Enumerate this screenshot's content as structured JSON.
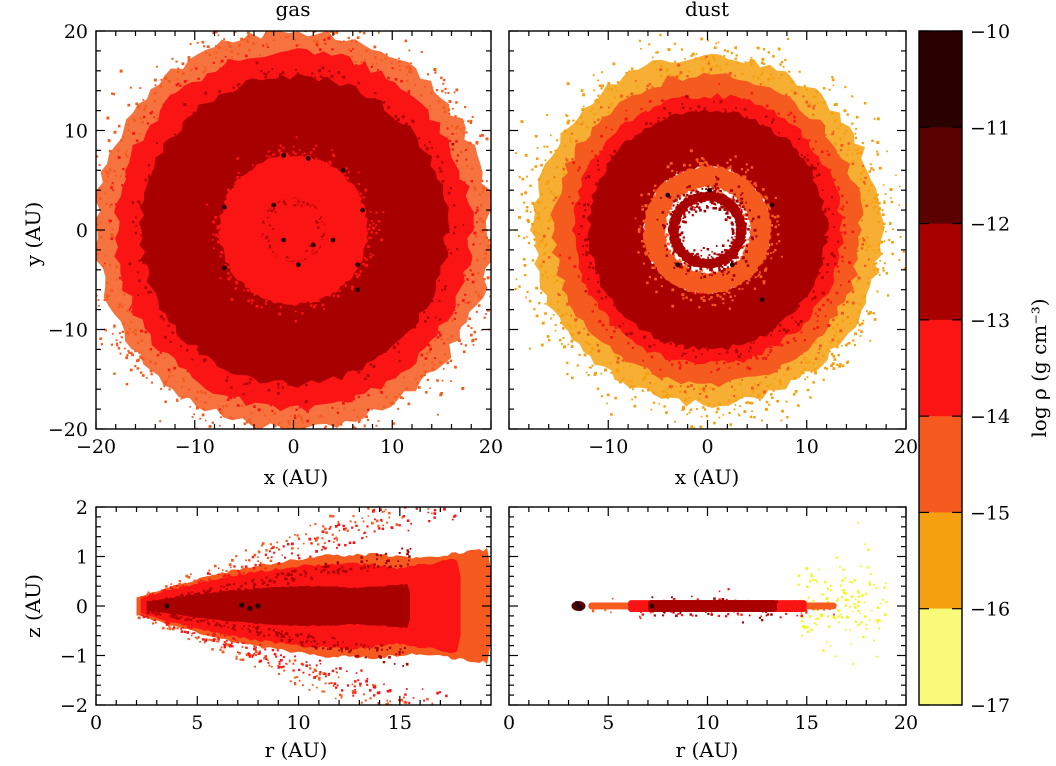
{
  "figure": {
    "colorbar_label": "log ρ (g cm⁻³)",
    "colorbar_ticks": [
      "−10",
      "−11",
      "−12",
      "−13",
      "−14",
      "−15",
      "−16",
      "−17"
    ]
  },
  "chart_data": [
    {
      "type": "scatter",
      "panel": "top-left",
      "title": "gas",
      "xlabel": "x (AU)",
      "ylabel": "y (AU)",
      "xlim": [
        -20,
        20
      ],
      "ylim": [
        -20,
        20
      ],
      "xticks": [
        -20,
        -10,
        0,
        10,
        20
      ],
      "yticks": [
        -20,
        -10,
        0,
        10,
        20
      ],
      "xtick_labels": [
        "−20",
        "−10",
        "0",
        "10",
        "20"
      ],
      "ytick_labels": [
        "−20",
        "−10",
        "0",
        "10",
        "20"
      ],
      "rings": [
        {
          "r_in": 0,
          "r_out": 20,
          "log_rho": -14,
          "sparse": true
        },
        {
          "r_in": 0,
          "r_out": 18,
          "log_rho": -13
        },
        {
          "r_in": 3.2,
          "r_out": 15.5,
          "log_rho": -12
        },
        {
          "r_in": 3.2,
          "r_out": 7.5,
          "log_rho": -13
        }
      ],
      "dense_points": [
        [
          -1,
          7.5
        ],
        [
          1.5,
          7.2
        ],
        [
          5,
          6
        ],
        [
          -7,
          2.3
        ],
        [
          7,
          2
        ],
        [
          -2,
          2.5
        ],
        [
          6.5,
          -3.5
        ],
        [
          6.5,
          -6
        ],
        [
          -7,
          -3.8
        ],
        [
          4,
          -1
        ],
        [
          2,
          -1.5
        ],
        [
          -1,
          -1
        ],
        [
          0.5,
          -3.5
        ]
      ]
    },
    {
      "type": "scatter",
      "panel": "top-right",
      "title": "dust",
      "xlabel": "x (AU)",
      "ylabel": "",
      "xlim": [
        -20,
        20
      ],
      "ylim": [
        -20,
        20
      ],
      "xticks": [
        -10,
        0,
        10,
        20
      ],
      "xtick_labels": [
        "−10",
        "0",
        "10",
        "20"
      ],
      "rings": [
        {
          "r_in": 13.5,
          "r_out": 17.5,
          "log_rho": -15,
          "sparse": true
        },
        {
          "r_in": 12,
          "r_out": 15.5,
          "log_rho": -14
        },
        {
          "r_in": 6.4,
          "r_out": 13.5,
          "log_rho": -13
        },
        {
          "r_in": 6.4,
          "r_out": 12,
          "log_rho": -12
        },
        {
          "r_in": 4.3,
          "r_out": 6.4,
          "log_rho": -14
        },
        {
          "r_in": 2.9,
          "r_out": 3.9,
          "log_rho": -12
        }
      ],
      "dense_points": [
        [
          -4,
          3.5
        ],
        [
          2.5,
          -3.5
        ],
        [
          0.2,
          4
        ],
        [
          -3,
          -3.5
        ],
        [
          6.5,
          2.5
        ],
        [
          5.5,
          -7
        ]
      ]
    },
    {
      "type": "scatter",
      "panel": "bottom-left",
      "title": "",
      "xlabel": "r (AU)",
      "ylabel": "z (AU)",
      "xlim": [
        0,
        19.5
      ],
      "ylim": [
        -2,
        2
      ],
      "xticks": [
        0,
        5,
        10,
        15
      ],
      "yticks": [
        -2,
        -1,
        0,
        1,
        2
      ],
      "xtick_labels": [
        "0",
        "5",
        "10",
        "15"
      ],
      "ytick_labels": [
        "−2",
        "−1",
        "0",
        "1",
        "2"
      ],
      "profiles": [
        {
          "log_rho": -14,
          "r_start": 2.0,
          "r_end": 19.5,
          "h_coef": 0.14,
          "h_min": 0.05
        },
        {
          "log_rho": -13,
          "r_start": 2.2,
          "r_end": 18.0,
          "h_coef": 0.125,
          "h_min": 0.1
        },
        {
          "log_rho": -12,
          "r_start": 2.5,
          "r_end": 15.5,
          "h_coef": 0.07,
          "h_min": 0.1
        }
      ],
      "dense_points": [
        [
          3.5,
          0
        ],
        [
          7.2,
          0.02
        ],
        [
          7.6,
          -0.05
        ],
        [
          8.0,
          0
        ]
      ]
    },
    {
      "type": "scatter",
      "panel": "bottom-right",
      "title": "",
      "xlabel": "r (AU)",
      "ylabel": "",
      "xlim": [
        0,
        20
      ],
      "ylim": [
        -2,
        2
      ],
      "xticks": [
        0,
        5,
        10,
        15,
        20
      ],
      "xtick_labels": [
        "0",
        "5",
        "10",
        "15",
        "20"
      ],
      "features": [
        {
          "r": [
            3.0,
            19.0
          ],
          "half_height": 0.9,
          "log_rho": -16,
          "sparse": true
        },
        {
          "r": [
            4.0,
            16.5
          ],
          "half_height": 0.07,
          "log_rho": -14
        },
        {
          "r": [
            6.0,
            15.0
          ],
          "half_height": 0.12,
          "log_rho": -13
        },
        {
          "r": [
            7.0,
            13.5
          ],
          "half_height": 0.12,
          "log_rho": -12
        }
      ],
      "dense_points": [
        [
          3.5,
          0
        ],
        [
          7.2,
          0
        ],
        [
          3.4,
          0.05
        ],
        [
          3.6,
          -0.05
        ]
      ]
    }
  ]
}
